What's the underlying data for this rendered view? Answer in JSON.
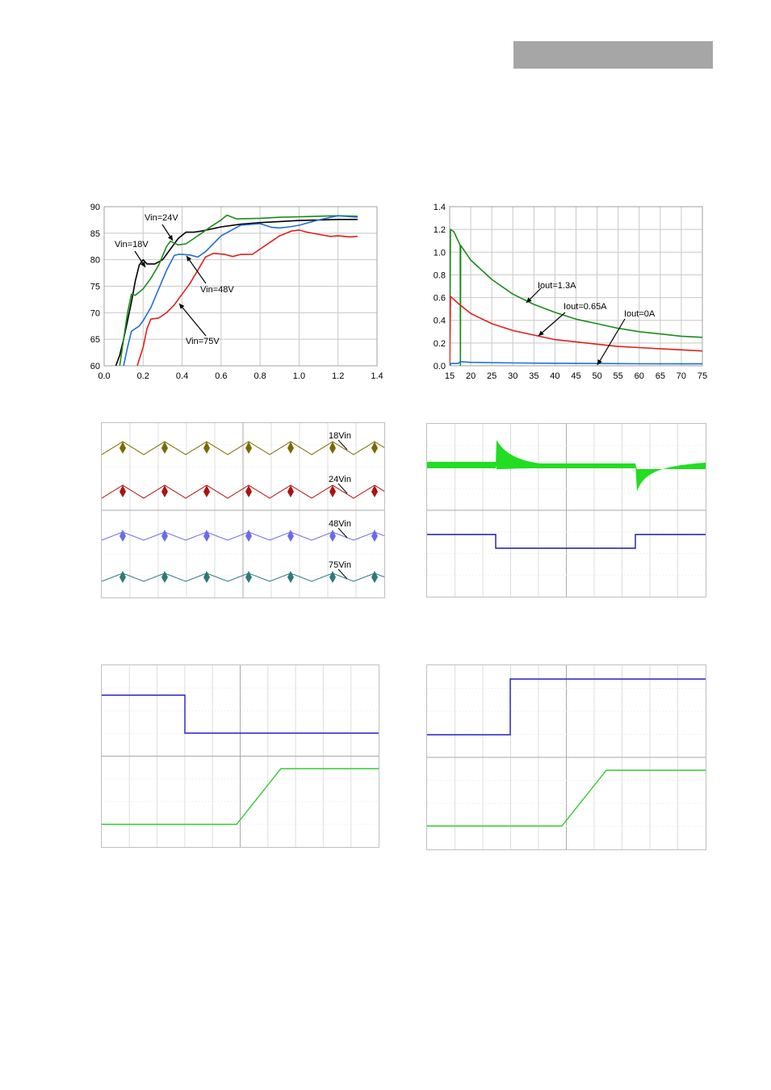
{
  "header": {
    "bar_color": "#a6a6a6"
  },
  "chart_data": [
    {
      "type": "line",
      "xlim": [
        0.0,
        1.4
      ],
      "ylim": [
        60,
        90
      ],
      "x_ticks": [
        "0.0",
        "0.2",
        "0.4",
        "0.6",
        "0.8",
        "1.0",
        "1.2",
        "1.4"
      ],
      "y_ticks": [
        "60",
        "65",
        "70",
        "75",
        "80",
        "85",
        "90"
      ],
      "grid": true,
      "series": [
        {
          "name": "Vin=18V",
          "color": "#000000",
          "x": [
            0.06,
            0.08,
            0.1,
            0.12,
            0.14,
            0.16,
            0.18,
            0.2,
            0.22,
            0.26,
            0.3,
            0.34,
            0.38,
            0.42,
            0.46,
            0.5,
            0.6,
            0.7,
            0.8,
            0.9,
            1.0,
            1.1,
            1.2,
            1.3
          ],
          "y": [
            60,
            62,
            65,
            68.5,
            72,
            76,
            79,
            80,
            79.2,
            79.2,
            80,
            82,
            84,
            85.2,
            85.2,
            85.4,
            86.2,
            86.7,
            87,
            87.2,
            87.4,
            87.5,
            87.6,
            87.6
          ]
        },
        {
          "name": "Vin=24V",
          "color": "#1a8c1a",
          "x": [
            0.08,
            0.1,
            0.12,
            0.14,
            0.16,
            0.2,
            0.24,
            0.28,
            0.32,
            0.34,
            0.38,
            0.42,
            0.46,
            0.5,
            0.55,
            0.6,
            0.63,
            0.68,
            0.8,
            0.9,
            1.0,
            1.1,
            1.2,
            1.3
          ],
          "y": [
            60,
            65,
            70,
            73.5,
            73.3,
            74.5,
            76.5,
            79,
            82.5,
            83.5,
            82.8,
            83,
            84,
            85,
            86.3,
            87.5,
            88.4,
            87.7,
            87.8,
            88,
            88.1,
            88.2,
            88.3,
            88.2
          ]
        },
        {
          "name": "Vin=48V",
          "color": "#1f6fd6",
          "x": [
            0.1,
            0.12,
            0.14,
            0.16,
            0.18,
            0.2,
            0.24,
            0.28,
            0.32,
            0.36,
            0.38,
            0.4,
            0.44,
            0.48,
            0.52,
            0.6,
            0.7,
            0.8,
            0.86,
            0.9,
            0.95,
            1.0,
            1.1,
            1.2,
            1.3
          ],
          "y": [
            60,
            63.5,
            66.5,
            67,
            67.5,
            68.5,
            71,
            74.5,
            78,
            80.8,
            81,
            81,
            80.9,
            80.5,
            81.5,
            84.5,
            86.5,
            86.8,
            86.1,
            86,
            86.2,
            86.5,
            87.5,
            88.3,
            88
          ]
        },
        {
          "name": "Vin=75V",
          "color": "#e0201a",
          "x": [
            0.17,
            0.2,
            0.22,
            0.24,
            0.26,
            0.28,
            0.32,
            0.36,
            0.4,
            0.44,
            0.48,
            0.52,
            0.56,
            0.62,
            0.66,
            0.7,
            0.76,
            0.8,
            0.86,
            0.9,
            0.96,
            1.0,
            1.04,
            1.1,
            1.16,
            1.2,
            1.26,
            1.3
          ],
          "y": [
            60,
            63.5,
            67,
            68.8,
            68.9,
            69,
            70,
            71.5,
            73.5,
            75.5,
            78,
            80.5,
            81.2,
            81,
            80.6,
            81,
            81,
            82,
            83.5,
            84.5,
            85.4,
            85.6,
            85.2,
            84.8,
            84.4,
            84.5,
            84.3,
            84.4
          ]
        }
      ],
      "annotations": [
        "Vin=24V",
        "Vin=18V",
        "Vin=48V",
        "Vin=75V"
      ]
    },
    {
      "type": "line",
      "xlim": [
        15,
        75
      ],
      "ylim": [
        0.0,
        1.4
      ],
      "x_ticks": [
        "15",
        "20",
        "25",
        "30",
        "35",
        "40",
        "45",
        "50",
        "55",
        "60",
        "65",
        "70",
        "75"
      ],
      "y_ticks": [
        "0.0",
        "0.2",
        "0.4",
        "0.6",
        "0.8",
        "1.0",
        "1.2",
        "1.4"
      ],
      "grid": true,
      "series": [
        {
          "name": "Iout=1.3A",
          "color": "#1a8c1a",
          "x": [
            15,
            15.2,
            16,
            17,
            17.5,
            17.55,
            17.6,
            20,
            25,
            30,
            35,
            40,
            45,
            50,
            55,
            60,
            65,
            70,
            75
          ],
          "y": [
            0.0,
            1.2,
            1.18,
            1.1,
            1.06,
            0.0,
            1.06,
            0.93,
            0.76,
            0.63,
            0.54,
            0.47,
            0.41,
            0.37,
            0.33,
            0.3,
            0.28,
            0.26,
            0.25
          ]
        },
        {
          "name": "Iout=0.65A",
          "color": "#e0201a",
          "x": [
            15,
            15.2,
            17,
            20,
            25,
            30,
            35,
            40,
            45,
            50,
            55,
            60,
            65,
            70,
            75
          ],
          "y": [
            0.0,
            0.61,
            0.55,
            0.46,
            0.37,
            0.31,
            0.27,
            0.23,
            0.21,
            0.19,
            0.17,
            0.16,
            0.15,
            0.14,
            0.13
          ]
        },
        {
          "name": "Iout=0A",
          "color": "#1f6fd6",
          "x": [
            15,
            15.3,
            17,
            17.5,
            18,
            20,
            30,
            40,
            50,
            60,
            70,
            75
          ],
          "y": [
            0.0,
            0.02,
            0.02,
            0.035,
            0.035,
            0.03,
            0.025,
            0.022,
            0.02,
            0.018,
            0.017,
            0.017
          ]
        }
      ],
      "annotations": [
        "Iout=1.3A",
        "Iout=0.65A",
        "Iout=0A"
      ]
    }
  ],
  "scope1": {
    "labels": [
      "18Vin",
      "24Vin",
      "48Vin",
      "75Vin"
    ],
    "colors": [
      "#7a6a00",
      "#b01010",
      "#6a6af0",
      "#2e7a7a"
    ]
  },
  "scope2": {
    "colors": [
      "#22dd22",
      "#1a1aa0"
    ]
  },
  "scope3": {
    "colors": [
      "#2020cc",
      "#33cc33"
    ]
  },
  "scope4": {
    "colors": [
      "#2020cc",
      "#33cc33"
    ]
  }
}
